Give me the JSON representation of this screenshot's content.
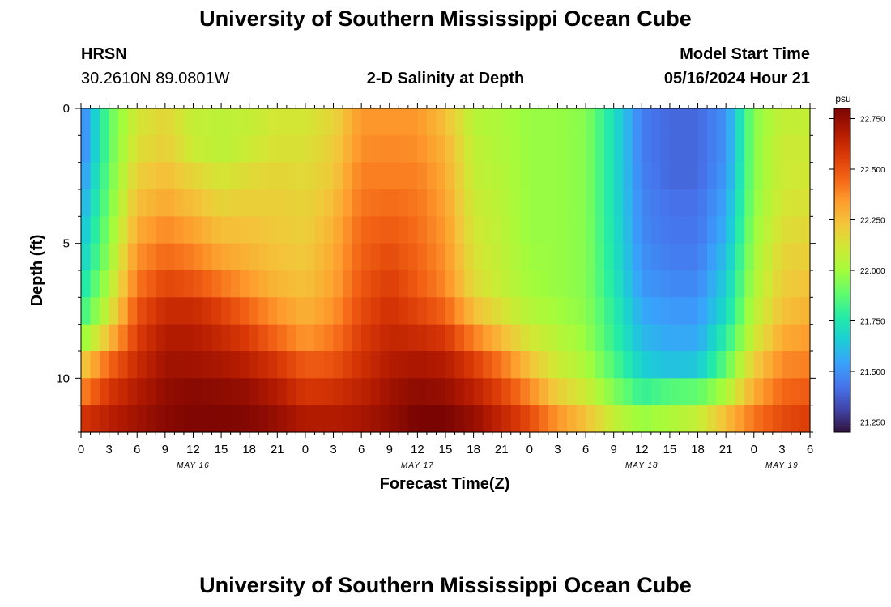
{
  "page": {
    "title": "University of Southern Mississippi Ocean Cube",
    "bottom_title": "University of Southern Mississippi Ocean Cube",
    "station": "HRSN",
    "coords": "30.2610N  89.0801W",
    "subtitle": "2-D Salinity at Depth",
    "model_start_label": "Model Start Time",
    "model_start_value": "05/16/2024 Hour 21"
  },
  "chart_data": {
    "type": "heatmap",
    "title": "2-D Salinity at Depth",
    "xlabel": "Forecast Time(Z)",
    "ylabel": "Depth (ft)",
    "ylim": [
      0,
      12
    ],
    "y_ticks": [
      "0",
      "5",
      "10"
    ],
    "x_tick_labels": [
      "0",
      "3",
      "6",
      "9",
      "12",
      "15",
      "18",
      "21",
      "0",
      "3",
      "6",
      "9",
      "12",
      "15",
      "18",
      "21",
      "0",
      "3",
      "6",
      "9",
      "12",
      "15",
      "18",
      "21",
      "0",
      "3",
      "6"
    ],
    "x_dates": [
      {
        "label": "MAY 16",
        "hour": 12
      },
      {
        "label": "MAY 17",
        "hour": 36
      },
      {
        "label": "MAY 18",
        "hour": 60
      },
      {
        "label": "MAY 19",
        "hour": 75
      }
    ],
    "x_range_hours": [
      0,
      78
    ],
    "colorbar": {
      "units": "psu",
      "min": 21.2,
      "max": 22.8,
      "tick_labels": [
        "22.750",
        "22.500",
        "22.250",
        "22.000",
        "21.750",
        "21.500",
        "21.250"
      ],
      "tick_values": [
        22.75,
        22.5,
        22.25,
        22.0,
        21.75,
        21.5,
        21.25
      ],
      "colors": [
        "#30123b",
        "#4145ab",
        "#4675ed",
        "#39a2fc",
        "#1bcfd4",
        "#24eca6",
        "#61fc6c",
        "#a4fc3b",
        "#d1e834",
        "#f3c63a",
        "#fe9b2d",
        "#f36315",
        "#d93806",
        "#b11901",
        "#7a0402"
      ]
    },
    "depth_levels_ft": [
      0.5,
      1.5,
      2.5,
      3.5,
      4.5,
      5.5,
      6.5,
      7.5,
      8.5,
      9.5,
      10.5,
      11.5
    ],
    "time_hours": [
      0,
      3,
      6,
      9,
      12,
      15,
      18,
      21,
      24,
      27,
      30,
      33,
      36,
      39,
      42,
      45,
      48,
      51,
      54,
      57,
      60,
      63,
      66,
      69,
      72,
      75,
      78
    ],
    "salinity_psu": [
      [
        21.45,
        21.88,
        22.12,
        22.18,
        22.08,
        22.06,
        22.08,
        22.12,
        22.12,
        22.18,
        22.35,
        22.35,
        22.35,
        22.25,
        22.05,
        22.02,
        21.98,
        21.98,
        21.95,
        21.72,
        21.45,
        21.4,
        21.4,
        21.5,
        21.95,
        22.08,
        22.08
      ],
      [
        21.45,
        21.88,
        22.15,
        22.2,
        22.1,
        22.06,
        22.1,
        22.14,
        22.14,
        22.2,
        22.37,
        22.38,
        22.37,
        22.28,
        22.07,
        22.03,
        21.98,
        21.98,
        21.95,
        21.72,
        21.45,
        21.4,
        21.4,
        21.5,
        21.95,
        22.1,
        22.1
      ],
      [
        21.5,
        21.9,
        22.2,
        22.25,
        22.18,
        22.12,
        22.16,
        22.18,
        22.16,
        22.22,
        22.4,
        22.4,
        22.4,
        22.3,
        22.08,
        22.04,
        21.98,
        21.98,
        21.95,
        21.72,
        21.46,
        21.4,
        21.4,
        21.52,
        21.95,
        22.1,
        22.12
      ],
      [
        21.55,
        21.92,
        22.25,
        22.3,
        22.25,
        22.18,
        22.2,
        22.2,
        22.18,
        22.25,
        22.42,
        22.44,
        22.42,
        22.32,
        22.1,
        22.05,
        21.98,
        21.98,
        21.95,
        21.72,
        21.47,
        21.42,
        21.42,
        21.55,
        21.96,
        22.12,
        22.14
      ],
      [
        21.6,
        21.95,
        22.3,
        22.38,
        22.32,
        22.25,
        22.24,
        22.22,
        22.2,
        22.28,
        22.45,
        22.48,
        22.44,
        22.34,
        22.12,
        22.06,
        21.98,
        21.98,
        21.95,
        21.73,
        21.48,
        21.43,
        21.43,
        21.58,
        21.98,
        22.15,
        22.17
      ],
      [
        21.65,
        21.98,
        22.36,
        22.45,
        22.4,
        22.32,
        22.28,
        22.24,
        22.22,
        22.3,
        22.47,
        22.52,
        22.46,
        22.36,
        22.14,
        22.07,
        21.99,
        21.98,
        21.95,
        21.74,
        21.5,
        21.45,
        21.45,
        21.62,
        22.0,
        22.18,
        22.2
      ],
      [
        21.72,
        22.03,
        22.42,
        22.53,
        22.5,
        22.42,
        22.34,
        22.27,
        22.24,
        22.32,
        22.49,
        22.56,
        22.48,
        22.38,
        22.16,
        22.08,
        22.0,
        21.98,
        21.95,
        21.75,
        21.52,
        21.48,
        21.48,
        21.66,
        22.02,
        22.2,
        22.24
      ],
      [
        21.8,
        22.1,
        22.5,
        22.62,
        22.62,
        22.55,
        22.45,
        22.35,
        22.28,
        22.36,
        22.52,
        22.6,
        22.54,
        22.46,
        22.25,
        22.14,
        22.04,
        22.0,
        21.96,
        21.78,
        21.56,
        21.52,
        21.52,
        21.7,
        22.05,
        22.24,
        22.28
      ],
      [
        21.95,
        22.25,
        22.56,
        22.68,
        22.68,
        22.63,
        22.56,
        22.45,
        22.35,
        22.42,
        22.56,
        22.64,
        22.62,
        22.58,
        22.4,
        22.26,
        22.12,
        22.05,
        21.98,
        21.8,
        21.6,
        21.56,
        21.56,
        21.78,
        22.1,
        22.3,
        22.34
      ],
      [
        22.2,
        22.45,
        22.62,
        22.72,
        22.72,
        22.7,
        22.66,
        22.58,
        22.48,
        22.5,
        22.6,
        22.68,
        22.7,
        22.68,
        22.56,
        22.42,
        22.24,
        22.1,
        22.02,
        21.85,
        21.66,
        21.62,
        21.64,
        21.88,
        22.2,
        22.38,
        22.4
      ],
      [
        22.38,
        22.58,
        22.68,
        22.75,
        22.77,
        22.76,
        22.74,
        22.68,
        22.58,
        22.6,
        22.65,
        22.72,
        22.76,
        22.74,
        22.66,
        22.54,
        22.38,
        22.2,
        22.1,
        21.94,
        21.8,
        21.86,
        21.88,
        22.02,
        22.3,
        22.45,
        22.48
      ],
      [
        22.58,
        22.66,
        22.72,
        22.77,
        22.79,
        22.79,
        22.78,
        22.74,
        22.68,
        22.68,
        22.7,
        22.75,
        22.8,
        22.8,
        22.74,
        22.64,
        22.52,
        22.35,
        22.24,
        22.08,
        21.98,
        22.02,
        22.08,
        22.25,
        22.42,
        22.52,
        22.56
      ]
    ]
  }
}
